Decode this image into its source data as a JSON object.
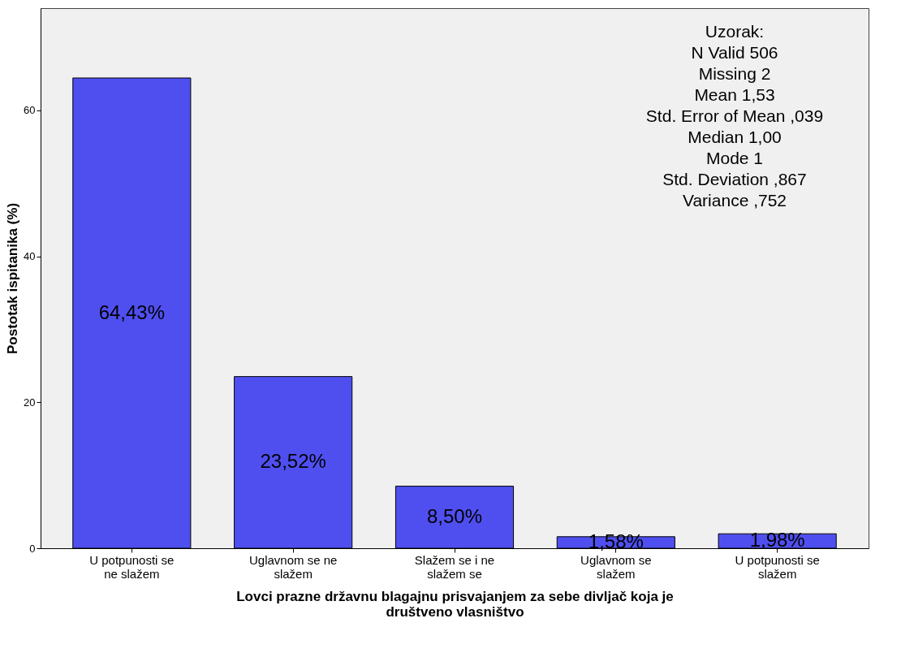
{
  "chart_data": {
    "type": "bar",
    "xlabel": "Lovci prazne državnu blagajnu prisvajanjem za sebe divljač koja je društveno vlasništvo",
    "ylabel": "Postotak ispitanika (%)",
    "categories": [
      "U potpunosti se ne slažem",
      "Uglavnom se ne slažem",
      "Slažem se i ne slažem se",
      "Uglavnom se slažem",
      "U potpunosti se slažem"
    ],
    "values": [
      64.43,
      23.52,
      8.5,
      1.58,
      1.98
    ],
    "value_labels": [
      "64,43%",
      "23,52%",
      "8,50%",
      "1,58%",
      "1,98%"
    ],
    "color": "#4f4ff0",
    "ylim": [
      0,
      74
    ],
    "yticks": [
      0,
      20,
      40,
      60
    ],
    "grid": false,
    "annotations": [
      "Uzorak:",
      "N  Valid  506",
      "Missing  2",
      "Mean  1,53",
      "Std. Error of Mean  ,039",
      "Median  1,00",
      "Mode  1",
      "Std. Deviation  ,867",
      "Variance  ,752"
    ]
  }
}
